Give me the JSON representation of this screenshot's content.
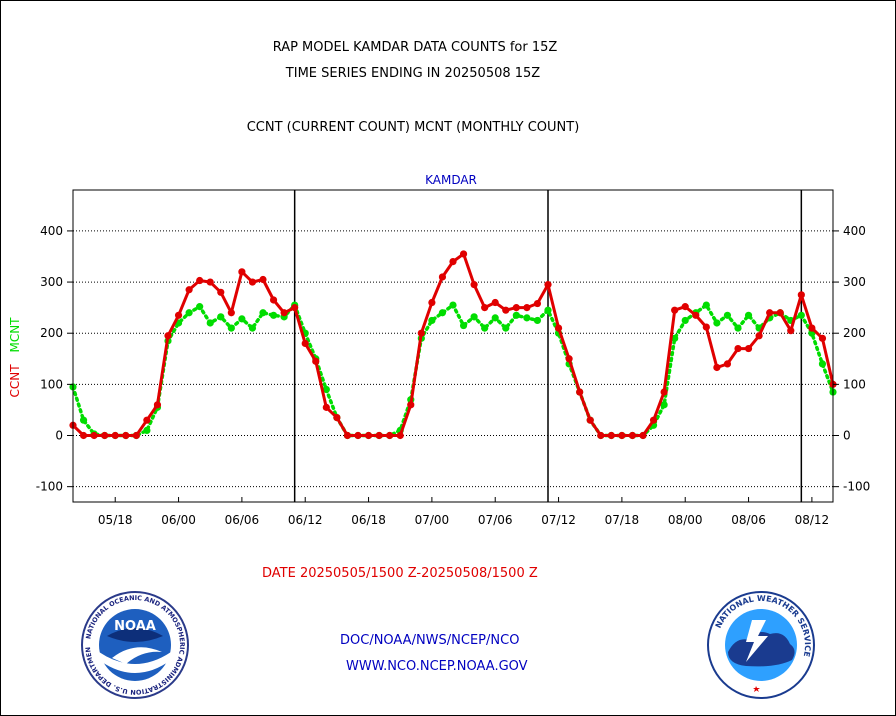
{
  "header": {
    "line1": "RAP MODEL KAMDAR DATA COUNTS for 15Z",
    "line2": "TIME SERIES ENDING IN 20250508 15Z",
    "line3": "CCNT (CURRENT COUNT) MCNT (MONTHLY COUNT)"
  },
  "station_label": "KAMDAR",
  "date_range": "DATE 20250505/1500 Z-20250508/1500 Z",
  "footer": {
    "line1": "DOC/NOAA/NWS/NCEP/NCO",
    "line2": "WWW.NCO.NCEP.NOAA.GOV"
  },
  "logos": {
    "noaa_text": "NOAA",
    "noaa_ring": "NATIONAL OCEANIC AND ATMOSPHERIC ADMINISTRATION  U.S. DEPARTMENT OF COMMERCE",
    "nws_ring": "NATIONAL WEATHER SERVICE"
  },
  "colors": {
    "ccnt": "#e00000",
    "mcnt": "#00dd00",
    "title_blue": "#0000c0"
  },
  "chart_data": {
    "type": "line",
    "title": "KAMDAR",
    "ylabel_left": [
      "CCNT",
      "MCNT"
    ],
    "ylim": [
      -130,
      480
    ],
    "yticks": [
      -100,
      0,
      100,
      200,
      300,
      400
    ],
    "xlim": [
      0,
      72
    ],
    "xticks": [
      {
        "x": 4,
        "label": "05/18"
      },
      {
        "x": 10,
        "label": "06/00"
      },
      {
        "x": 16,
        "label": "06/06"
      },
      {
        "x": 22,
        "label": "06/12"
      },
      {
        "x": 28,
        "label": "06/18"
      },
      {
        "x": 34,
        "label": "07/00"
      },
      {
        "x": 40,
        "label": "07/06"
      },
      {
        "x": 46,
        "label": "07/12"
      },
      {
        "x": 52,
        "label": "07/18"
      },
      {
        "x": 58,
        "label": "08/00"
      },
      {
        "x": 64,
        "label": "08/06"
      },
      {
        "x": 70,
        "label": "08/12"
      }
    ],
    "day_boundaries": [
      21,
      45,
      69
    ],
    "grid": true,
    "series": [
      {
        "name": "CCNT",
        "values": [
          20,
          0,
          0,
          0,
          0,
          0,
          0,
          30,
          60,
          195,
          235,
          285,
          303,
          300,
          280,
          240,
          320,
          300,
          305,
          265,
          240,
          250,
          180,
          145,
          55,
          35,
          0,
          0,
          0,
          0,
          0,
          0,
          60,
          200,
          260,
          310,
          340,
          355,
          295,
          250,
          260,
          245,
          250,
          250,
          258,
          295,
          210,
          150,
          85,
          30,
          0,
          0,
          0,
          0,
          0,
          30,
          85,
          245,
          252,
          235,
          212,
          133,
          140,
          170,
          170,
          195,
          240,
          240,
          205,
          275,
          210,
          190,
          100
        ]
      },
      {
        "name": "MCNT",
        "values": [
          95,
          30,
          3,
          0,
          0,
          0,
          0,
          10,
          55,
          185,
          220,
          240,
          252,
          220,
          232,
          210,
          228,
          210,
          240,
          235,
          232,
          255,
          200,
          150,
          90,
          35,
          0,
          0,
          0,
          0,
          0,
          10,
          70,
          190,
          225,
          240,
          255,
          215,
          232,
          210,
          230,
          210,
          235,
          230,
          225,
          245,
          200,
          140,
          85,
          30,
          0,
          0,
          0,
          0,
          0,
          20,
          60,
          190,
          225,
          240,
          255,
          220,
          235,
          210,
          235,
          210,
          230,
          240,
          225,
          235,
          200,
          140,
          85
        ]
      }
    ]
  }
}
